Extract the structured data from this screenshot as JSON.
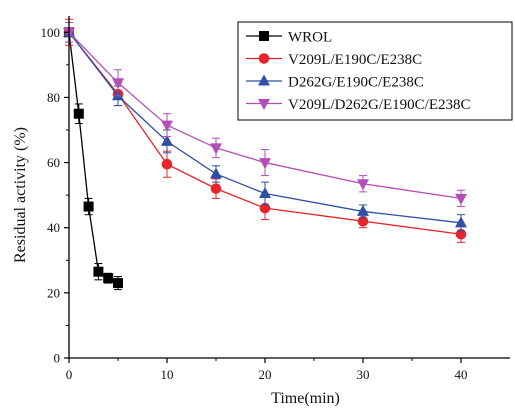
{
  "chart_data": {
    "type": "scatter",
    "title": "",
    "xlabel": "Time(min)",
    "ylabel": "Residual activity (%)",
    "xlim": [
      0,
      45
    ],
    "ylim": [
      0,
      105
    ],
    "xticks": [
      0,
      10,
      20,
      30,
      40
    ],
    "yticks": [
      0,
      20,
      40,
      60,
      80,
      100
    ],
    "grid": false,
    "legend_position": "top-right",
    "series": [
      {
        "name": "WROL",
        "color": "#000000",
        "marker": "square",
        "x": [
          0,
          1,
          2,
          3,
          4,
          5
        ],
        "y": [
          100,
          75,
          46.5,
          26.5,
          24.5,
          23
        ],
        "err": [
          0,
          3,
          2.5,
          2.5,
          1.5,
          2
        ]
      },
      {
        "name": "V209L/E190C/E238C",
        "color": "#e8242c",
        "marker": "circle",
        "x": [
          0,
          5,
          10,
          15,
          20,
          30,
          40
        ],
        "y": [
          100,
          81,
          59.5,
          52,
          46,
          42,
          38
        ],
        "err": [
          4,
          3.5,
          4,
          3,
          3.5,
          2,
          2.5
        ]
      },
      {
        "name": "D262G/E190C/E238C",
        "color": "#2e4fa3",
        "marker": "triangle-up",
        "x": [
          0,
          5,
          10,
          15,
          20,
          30,
          40
        ],
        "y": [
          100,
          80.5,
          66.5,
          56.5,
          50.5,
          45,
          41.5
        ],
        "err": [
          3,
          3,
          3.5,
          2.5,
          3.5,
          2,
          2.5
        ]
      },
      {
        "name": "V209L/D262G/E190C/E238C",
        "color": "#b24fb6",
        "marker": "triangle-down",
        "x": [
          0,
          5,
          10,
          15,
          20,
          30,
          40
        ],
        "y": [
          100,
          84.5,
          71.5,
          64.5,
          60,
          53.5,
          49
        ],
        "err": [
          3,
          4,
          3.5,
          3,
          4,
          2.5,
          2.5
        ]
      }
    ]
  }
}
